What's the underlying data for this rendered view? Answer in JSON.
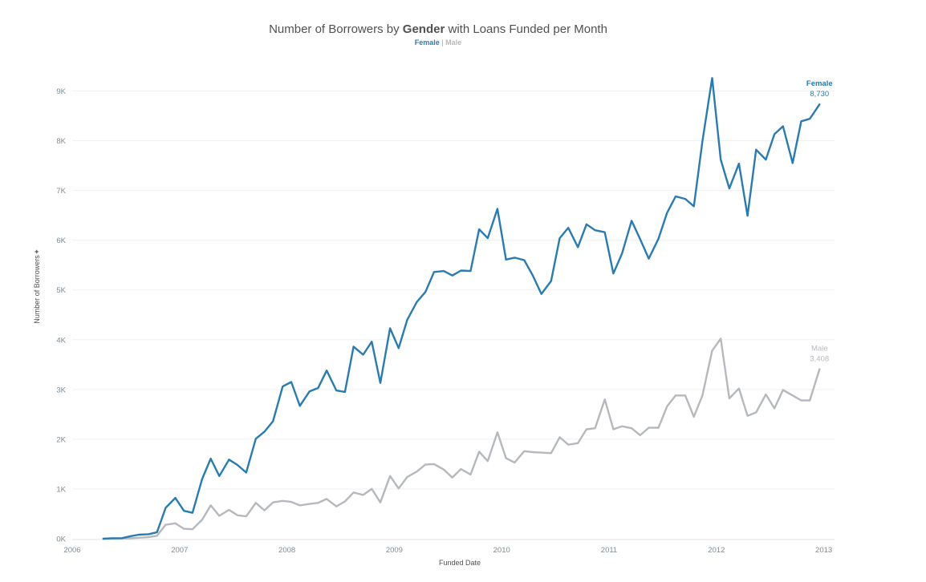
{
  "chart_data": {
    "type": "line",
    "title_prefix": "Number of Borrowers by ",
    "title_bold": "Gender",
    "title_suffix": " with Loans Funded per Month",
    "legend": {
      "female": "Female",
      "separator": " | ",
      "male": "Male"
    },
    "xlabel": "Funded Date",
    "ylabel": "Number of Borrowers",
    "x_ticks": [
      "2006",
      "2007",
      "2008",
      "2009",
      "2010",
      "2011",
      "2012",
      "2013"
    ],
    "y_ticks": [
      "0K",
      "1K",
      "2K",
      "3K",
      "4K",
      "5K",
      "6K",
      "7K",
      "8K",
      "9K"
    ],
    "xlim": [
      2006,
      2013.1
    ],
    "ylim": [
      0,
      9700
    ],
    "grid": true,
    "colors": {
      "female": "#2a7bb0",
      "male": "#b5b9bd"
    },
    "series": [
      {
        "name": "Female",
        "end_label": "Female",
        "end_value": "8,730",
        "x": [
          2006.29,
          2006.37,
          2006.46,
          2006.54,
          2006.62,
          2006.71,
          2006.79,
          2006.87,
          2006.96,
          2007.04,
          2007.12,
          2007.21,
          2007.29,
          2007.37,
          2007.46,
          2007.54,
          2007.62,
          2007.71,
          2007.79,
          2007.87,
          2007.96,
          2008.04,
          2008.12,
          2008.21,
          2008.29,
          2008.37,
          2008.46,
          2008.54,
          2008.62,
          2008.71,
          2008.79,
          2008.87,
          2008.96,
          2009.04,
          2009.12,
          2009.21,
          2009.29,
          2009.37,
          2009.46,
          2009.54,
          2009.62,
          2009.71,
          2009.79,
          2009.87,
          2009.96,
          2010.04,
          2010.12,
          2010.21,
          2010.29,
          2010.37,
          2010.46,
          2010.54,
          2010.62,
          2010.71,
          2010.79,
          2010.87,
          2010.96,
          2011.04,
          2011.12,
          2011.21,
          2011.29,
          2011.37,
          2011.46,
          2011.54,
          2011.62,
          2011.71,
          2011.79,
          2011.87,
          2011.96,
          2012.04,
          2012.12,
          2012.21,
          2012.29,
          2012.37,
          2012.46,
          2012.54,
          2012.62,
          2012.71,
          2012.79,
          2012.87,
          2012.96
        ],
        "values": [
          0,
          10,
          10,
          50,
          80,
          90,
          130,
          620,
          820,
          560,
          520,
          1200,
          1610,
          1260,
          1590,
          1480,
          1330,
          2010,
          2150,
          2360,
          3060,
          3150,
          2670,
          2960,
          3030,
          3380,
          2980,
          2950,
          3860,
          3700,
          3960,
          3130,
          4230,
          3830,
          4400,
          4760,
          4960,
          5360,
          5380,
          5290,
          5390,
          5380,
          6220,
          6040,
          6630,
          5610,
          5650,
          5600,
          5290,
          4920,
          5180,
          6040,
          6250,
          5860,
          6320,
          6200,
          6160,
          5330,
          5730,
          6390,
          6020,
          5630,
          6030,
          6550,
          6880,
          6830,
          6680,
          7990,
          9260,
          7620,
          7040,
          7540,
          6490,
          7820,
          7620,
          8130,
          8290,
          7550,
          8390,
          8440,
          8730
        ]
      },
      {
        "name": "Male",
        "end_label": "Male",
        "end_value": "3,408",
        "x": [
          2006.29,
          2006.37,
          2006.46,
          2006.54,
          2006.62,
          2006.71,
          2006.79,
          2006.87,
          2006.96,
          2007.04,
          2007.12,
          2007.21,
          2007.29,
          2007.37,
          2007.46,
          2007.54,
          2007.62,
          2007.71,
          2007.79,
          2007.87,
          2007.96,
          2008.04,
          2008.12,
          2008.21,
          2008.29,
          2008.37,
          2008.46,
          2008.54,
          2008.62,
          2008.71,
          2008.79,
          2008.87,
          2008.96,
          2009.04,
          2009.12,
          2009.21,
          2009.29,
          2009.37,
          2009.46,
          2009.54,
          2009.62,
          2009.71,
          2009.79,
          2009.87,
          2009.96,
          2010.04,
          2010.12,
          2010.21,
          2010.29,
          2010.37,
          2010.46,
          2010.54,
          2010.62,
          2010.71,
          2010.79,
          2010.87,
          2010.96,
          2011.04,
          2011.12,
          2011.21,
          2011.29,
          2011.37,
          2011.46,
          2011.54,
          2011.62,
          2011.71,
          2011.79,
          2011.87,
          2011.96,
          2012.04,
          2012.12,
          2012.21,
          2012.29,
          2012.37,
          2012.46,
          2012.54,
          2012.62,
          2012.71,
          2012.79,
          2012.87,
          2012.96
        ],
        "values": [
          0,
          0,
          5,
          10,
          20,
          30,
          60,
          280,
          310,
          200,
          190,
          380,
          670,
          460,
          580,
          470,
          450,
          720,
          570,
          730,
          760,
          740,
          670,
          700,
          720,
          800,
          650,
          750,
          930,
          880,
          1000,
          730,
          1260,
          1010,
          1240,
          1350,
          1490,
          1500,
          1390,
          1230,
          1400,
          1290,
          1750,
          1560,
          2140,
          1620,
          1530,
          1760,
          1740,
          1730,
          1720,
          2040,
          1890,
          1920,
          2200,
          2220,
          2800,
          2200,
          2260,
          2220,
          2080,
          2230,
          2230,
          2660,
          2880,
          2880,
          2450,
          2880,
          3780,
          4020,
          2820,
          3020,
          2470,
          2540,
          2900,
          2620,
          2990,
          2880,
          2780,
          2780,
          3408
        ]
      }
    ]
  }
}
